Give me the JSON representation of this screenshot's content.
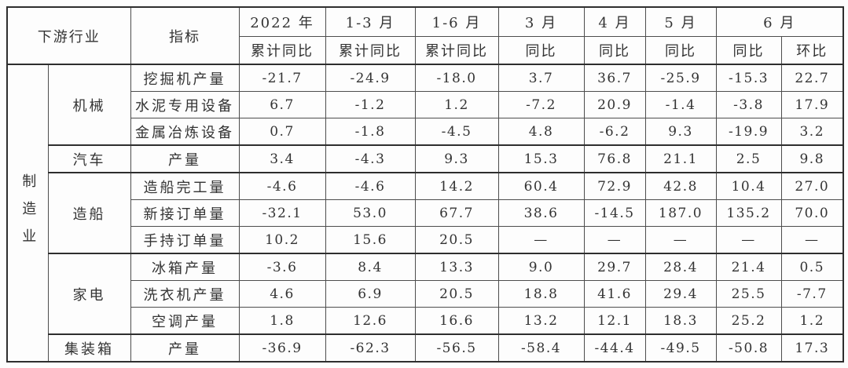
{
  "colors": {
    "background": "#fdfdfd",
    "text": "#333333",
    "border": "#4d4d4d",
    "border_strong": "#2e2e2e"
  },
  "chart_data": {
    "type": "table",
    "header": {
      "row_label_col": "下游行业",
      "indicator_col": "指标",
      "periods": [
        {
          "label": "2022 年",
          "subs": [
            "累计同比"
          ]
        },
        {
          "label": "1-3 月",
          "subs": [
            "累计同比"
          ]
        },
        {
          "label": "1-6 月",
          "subs": [
            "累计同比"
          ]
        },
        {
          "label": "3 月",
          "subs": [
            "同比"
          ]
        },
        {
          "label": "4 月",
          "subs": [
            "同比"
          ]
        },
        {
          "label": "5 月",
          "subs": [
            "同比"
          ]
        },
        {
          "label": "6 月",
          "subs": [
            "同比",
            "环比"
          ]
        }
      ]
    },
    "sector": "制造业",
    "groups": [
      {
        "name": "机械",
        "rows": [
          {
            "indicator": "挖掘机产量",
            "values": [
              "-21.7",
              "-24.9",
              "-18.0",
              "3.7",
              "36.7",
              "-25.9",
              "-15.3",
              "22.7"
            ]
          },
          {
            "indicator": "水泥专用设备",
            "values": [
              "6.7",
              "-1.2",
              "1.2",
              "-7.2",
              "20.9",
              "-1.4",
              "-3.8",
              "17.9"
            ]
          },
          {
            "indicator": "金属冶炼设备",
            "values": [
              "0.7",
              "-1.8",
              "-4.5",
              "4.8",
              "-6.2",
              "9.3",
              "-19.9",
              "3.2"
            ]
          }
        ]
      },
      {
        "name": "汽车",
        "rows": [
          {
            "indicator": "产量",
            "values": [
              "3.4",
              "-4.3",
              "9.3",
              "15.3",
              "76.8",
              "21.1",
              "2.5",
              "9.8"
            ]
          }
        ]
      },
      {
        "name": "造船",
        "rows": [
          {
            "indicator": "造船完工量",
            "values": [
              "-4.6",
              "-4.6",
              "14.2",
              "60.4",
              "72.9",
              "42.8",
              "10.4",
              "27.0"
            ]
          },
          {
            "indicator": "新接订单量",
            "values": [
              "-32.1",
              "53.0",
              "67.7",
              "38.6",
              "-14.5",
              "187.0",
              "135.2",
              "70.0"
            ]
          },
          {
            "indicator": "手持订单量",
            "values": [
              "10.2",
              "15.6",
              "20.5",
              "—",
              "—",
              "—",
              "—",
              "—"
            ]
          }
        ]
      },
      {
        "name": "家电",
        "rows": [
          {
            "indicator": "冰箱产量",
            "values": [
              "-3.6",
              "8.4",
              "13.3",
              "9.0",
              "29.7",
              "28.4",
              "21.4",
              "0.5"
            ]
          },
          {
            "indicator": "洗衣机产量",
            "values": [
              "4.6",
              "6.9",
              "20.5",
              "18.8",
              "41.6",
              "29.4",
              "25.5",
              "-7.7"
            ]
          },
          {
            "indicator": "空调产量",
            "values": [
              "1.8",
              "12.6",
              "16.6",
              "13.2",
              "12.1",
              "18.3",
              "25.2",
              "1.2"
            ]
          }
        ]
      },
      {
        "name": "集装箱",
        "rows": [
          {
            "indicator": "产量",
            "values": [
              "-36.9",
              "-62.3",
              "-56.5",
              "-58.4",
              "-44.4",
              "-49.5",
              "-50.8",
              "17.3"
            ]
          }
        ]
      }
    ]
  }
}
